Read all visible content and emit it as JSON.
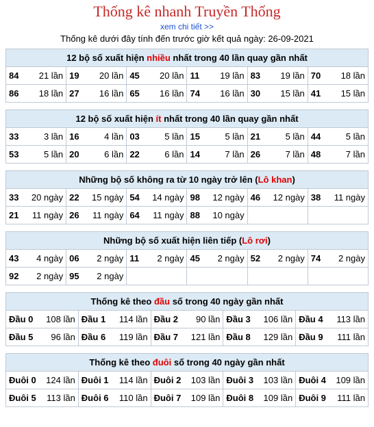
{
  "header": {
    "title": "Thống kê nhanh Truyền Thống",
    "link": "xem chi tiết >>",
    "subtitle": "Thống kê dưới đây tính đến trước giờ kết quả ngày: 26-09-2021"
  },
  "section1": {
    "title_pre": "12 bộ số xuất hiện ",
    "title_hl": "nhiều",
    "title_post": " nhất trong 40 lần quay gần nhất",
    "rows": [
      [
        {
          "n": "84",
          "v": "21 lần"
        },
        {
          "n": "19",
          "v": "20 lần"
        },
        {
          "n": "45",
          "v": "20 lần"
        },
        {
          "n": "11",
          "v": "19 lần"
        },
        {
          "n": "83",
          "v": "19 lần"
        },
        {
          "n": "70",
          "v": "18 lần"
        }
      ],
      [
        {
          "n": "86",
          "v": "18 lần"
        },
        {
          "n": "27",
          "v": "16 lần"
        },
        {
          "n": "65",
          "v": "16 lần"
        },
        {
          "n": "74",
          "v": "16 lần"
        },
        {
          "n": "30",
          "v": "15 lần"
        },
        {
          "n": "41",
          "v": "15 lần"
        }
      ]
    ]
  },
  "section2": {
    "title_pre": "12 bộ số xuất hiện ",
    "title_hl": "ít",
    "title_post": " nhất trong 40 lần quay gần nhất",
    "rows": [
      [
        {
          "n": "33",
          "v": "3 lần"
        },
        {
          "n": "16",
          "v": "4 lần"
        },
        {
          "n": "03",
          "v": "5 lần"
        },
        {
          "n": "15",
          "v": "5 lần"
        },
        {
          "n": "21",
          "v": "5 lần"
        },
        {
          "n": "44",
          "v": "5 lần"
        }
      ],
      [
        {
          "n": "53",
          "v": "5 lần"
        },
        {
          "n": "20",
          "v": "6 lần"
        },
        {
          "n": "22",
          "v": "6 lần"
        },
        {
          "n": "14",
          "v": "7 lần"
        },
        {
          "n": "26",
          "v": "7 lần"
        },
        {
          "n": "48",
          "v": "7 lần"
        }
      ]
    ]
  },
  "section3": {
    "title_pre": "Những bộ số không ra từ 10 ngày trở lên (",
    "title_hl": "Lô khan",
    "title_post": ")",
    "rows": [
      [
        {
          "n": "33",
          "v": "20 ngày"
        },
        {
          "n": "22",
          "v": "15 ngày"
        },
        {
          "n": "54",
          "v": "14 ngày"
        },
        {
          "n": "98",
          "v": "12 ngày"
        },
        {
          "n": "46",
          "v": "12 ngày"
        },
        {
          "n": "38",
          "v": "11 ngày"
        }
      ],
      [
        {
          "n": "21",
          "v": "11 ngày"
        },
        {
          "n": "26",
          "v": "11 ngày"
        },
        {
          "n": "64",
          "v": "11 ngày"
        },
        {
          "n": "88",
          "v": "10 ngày"
        },
        {
          "n": "",
          "v": ""
        },
        {
          "n": "",
          "v": ""
        }
      ]
    ]
  },
  "section4": {
    "title_pre": "Những bộ số xuất hiện liên tiếp (",
    "title_hl": "Lô rơi",
    "title_post": ")",
    "rows": [
      [
        {
          "n": "43",
          "v": "4 ngày"
        },
        {
          "n": "06",
          "v": "2 ngày"
        },
        {
          "n": "11",
          "v": "2 ngày"
        },
        {
          "n": "45",
          "v": "2 ngày"
        },
        {
          "n": "52",
          "v": "2 ngày"
        },
        {
          "n": "74",
          "v": "2 ngày"
        }
      ],
      [
        {
          "n": "92",
          "v": "2 ngày"
        },
        {
          "n": "95",
          "v": "2 ngày"
        },
        {
          "n": "",
          "v": ""
        },
        {
          "n": "",
          "v": ""
        },
        {
          "n": "",
          "v": ""
        },
        {
          "n": "",
          "v": ""
        }
      ]
    ]
  },
  "section5": {
    "title_pre": "Thống kê theo ",
    "title_hl": "đầu",
    "title_post": " số trong 40 ngày gần nhất",
    "rows": [
      [
        {
          "n": "Đầu 0",
          "v": "108 lần"
        },
        {
          "n": "Đầu 1",
          "v": "114 lần"
        },
        {
          "n": "Đầu 2",
          "v": "90 lần"
        },
        {
          "n": "Đầu 3",
          "v": "106 lần"
        },
        {
          "n": "Đầu 4",
          "v": "113 lần"
        }
      ],
      [
        {
          "n": "Đầu 5",
          "v": "96 lần"
        },
        {
          "n": "Đầu 6",
          "v": "119 lần"
        },
        {
          "n": "Đầu 7",
          "v": "121 lần"
        },
        {
          "n": "Đầu 8",
          "v": "129 lần"
        },
        {
          "n": "Đầu 9",
          "v": "111 lần"
        }
      ]
    ]
  },
  "section6": {
    "title_pre": "Thống kê theo ",
    "title_hl": "đuôi",
    "title_post": " số trong 40 ngày gần nhất",
    "rows": [
      [
        {
          "n": "Đuôi 0",
          "v": "124 lần"
        },
        {
          "n": "Đuôi 1",
          "v": "114 lần"
        },
        {
          "n": "Đuôi 2",
          "v": "103 lần"
        },
        {
          "n": "Đuôi 3",
          "v": "103 lần"
        },
        {
          "n": "Đuôi 4",
          "v": "109 lần"
        }
      ],
      [
        {
          "n": "Đuôi 5",
          "v": "113 lần"
        },
        {
          "n": "Đuôi 6",
          "v": "110 lần"
        },
        {
          "n": "Đuôi 7",
          "v": "109 lần"
        },
        {
          "n": "Đuôi 8",
          "v": "109 lần"
        },
        {
          "n": "Đuôi 9",
          "v": "111 lần"
        }
      ]
    ]
  }
}
